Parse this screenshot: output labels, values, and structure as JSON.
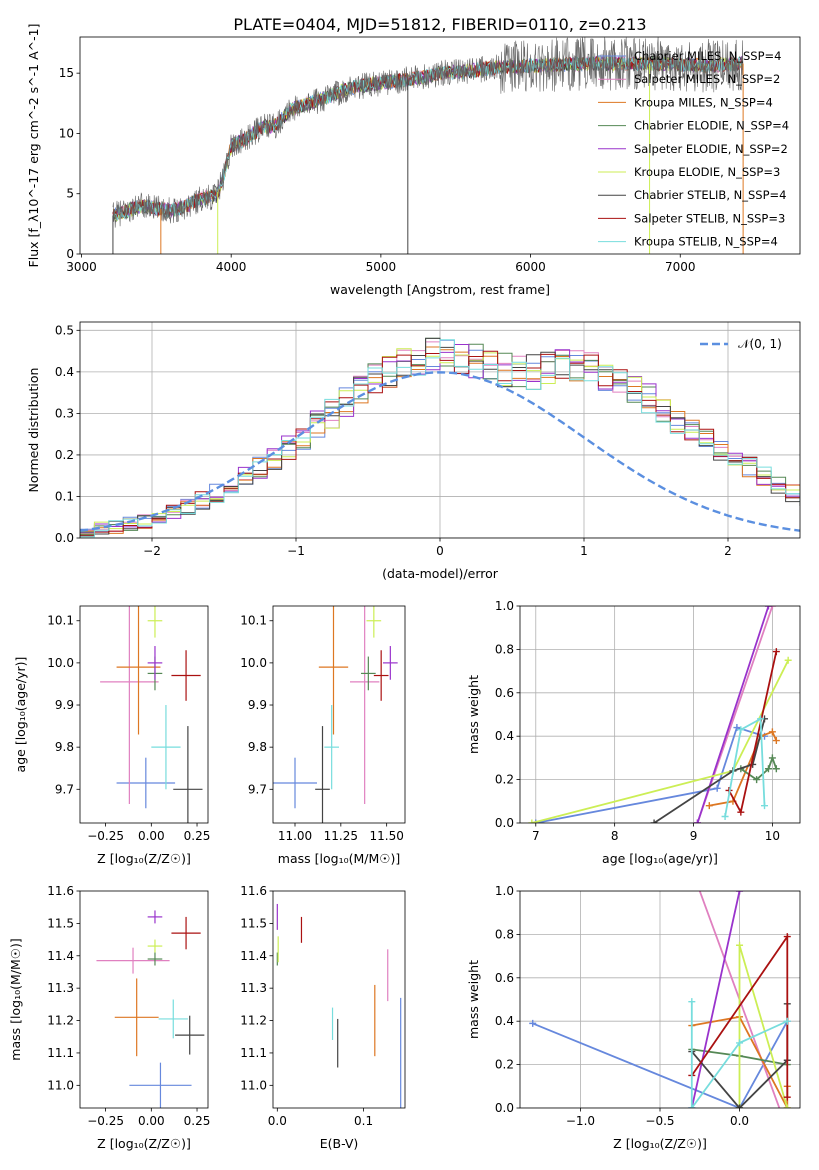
{
  "title": "PLATE=0404, MJD=51812, FIBERID=0110, z=0.213",
  "colors": {
    "Chabrier MILES": "#6688dd",
    "Salpeter MILES": "#e080c0",
    "Kroupa MILES": "#dd7722",
    "Chabrier ELODIE": "#558855",
    "Salpeter ELODIE": "#9933cc",
    "Kroupa ELODIE": "#ccee55",
    "Chabrier STELIB": "#444444",
    "Salpeter STELIB": "#aa1111",
    "Kroupa STELIB": "#77dddd",
    "data": "#666666",
    "normal": "#5b8fe0"
  },
  "chart_data": [
    {
      "type": "line",
      "id": "spectrum",
      "xlabel": "wavelength [Angstrom, rest frame]",
      "ylabel": "Flux [f_λ10^-17 erg cm^-2 s^-1 A^-1]",
      "xticks": [
        "3000",
        "4000",
        "5000",
        "6000",
        "7000"
      ],
      "yticks": [
        "0",
        "5",
        "10",
        "15"
      ],
      "xlim": [
        2990,
        7800
      ],
      "ylim": [
        0,
        18
      ],
      "x_range": [
        3210,
        7420
      ],
      "continuum": {
        "x": [
          3210,
          3400,
          3600,
          3700,
          3800,
          3900,
          3950,
          4000,
          4100,
          4200,
          4300,
          4400,
          4600,
          4800,
          5000,
          5200,
          5400,
          5600,
          5800,
          6000,
          6200,
          6400,
          6600,
          6800,
          7000,
          7200,
          7420
        ],
        "y": [
          3.2,
          4,
          3.6,
          4,
          4.6,
          4.8,
          6.5,
          9,
          9.5,
          10.5,
          10.7,
          12,
          12.8,
          13.8,
          14.2,
          14.5,
          15,
          15.2,
          15.5,
          15.6,
          15.7,
          15.8,
          15.8,
          15.8,
          15.7,
          15.6,
          15.8
        ]
      },
      "legend": [
        {
          "label": "Chabrier MILES, N_SSP=4"
        },
        {
          "label": "Salpeter MILES, N_SSP=2"
        },
        {
          "label": "Kroupa MILES, N_SSP=4"
        },
        {
          "label": "Chabrier ELODIE, N_SSP=4"
        },
        {
          "label": "Salpeter ELODIE, N_SSP=2"
        },
        {
          "label": "Kroupa ELODIE, N_SSP=3"
        },
        {
          "label": "Chabrier STELIB, N_SSP=4"
        },
        {
          "label": "Salpeter STELIB, N_SSP=3"
        },
        {
          "label": "Kroupa STELIB, N_SSP=4"
        }
      ],
      "legend_placement": "upper-right"
    },
    {
      "type": "histogram",
      "id": "residuals",
      "xlabel": "(data-model)/error",
      "ylabel": "Normed distribution",
      "xticks": [
        "−2",
        "−1",
        "0",
        "1",
        "2"
      ],
      "yticks": [
        "0.0",
        "0.1",
        "0.2",
        "0.3",
        "0.4",
        "0.5"
      ],
      "xlim": [
        -2.5,
        2.5
      ],
      "ylim": [
        0,
        0.52
      ],
      "bin_width": 0.1,
      "bin_start": -2.5,
      "base_values": [
        0.018,
        0.022,
        0.027,
        0.033,
        0.041,
        0.051,
        0.062,
        0.076,
        0.09,
        0.107,
        0.125,
        0.145,
        0.168,
        0.192,
        0.218,
        0.244,
        0.272,
        0.3,
        0.329,
        0.355,
        0.38,
        0.4,
        0.415,
        0.43,
        0.44,
        0.44,
        0.435,
        0.425,
        0.415,
        0.405,
        0.4,
        0.4,
        0.405,
        0.41,
        0.41,
        0.405,
        0.395,
        0.38,
        0.36,
        0.335,
        0.31,
        0.285,
        0.258,
        0.232,
        0.21,
        0.188,
        0.168,
        0.148,
        0.128,
        0.11,
        0.094,
        0.08,
        0.068,
        0.057,
        0.047,
        0.039,
        0.032,
        0.026,
        0.022,
        0.018
      ],
      "legend_label": "𝒩(0, 1)",
      "legend_placement": "upper-right",
      "grid": true
    },
    {
      "type": "scatter",
      "id": "age_vs_Z",
      "xlabel": "Z [log₁₀(Z/Z☉)]",
      "ylabel": "age  [log₁₀(age/yr)]",
      "xticks": [
        "−0.25",
        "0.00",
        "0.25"
      ],
      "yticks": [
        "9.7",
        "9.8",
        "9.9",
        "10.0",
        "10.1"
      ],
      "xlim": [
        -0.39,
        0.31
      ],
      "ylim": [
        9.62,
        10.135
      ],
      "points": [
        {
          "series": "Chabrier MILES",
          "x": -0.03,
          "y": 9.715,
          "xerr": 0.16,
          "yerr": 0.06
        },
        {
          "series": "Salpeter MILES",
          "x": -0.12,
          "y": 9.955,
          "xerr": 0.16,
          "yerr": 0.29
        },
        {
          "series": "Kroupa MILES",
          "x": -0.07,
          "y": 9.99,
          "xerr": 0.12,
          "yerr": 0.16
        },
        {
          "series": "Chabrier ELODIE",
          "x": 0.02,
          "y": 9.975,
          "xerr": 0.04,
          "yerr": 0.04
        },
        {
          "series": "Salpeter ELODIE",
          "x": 0.02,
          "y": 10.0,
          "xerr": 0.04,
          "yerr": 0.04
        },
        {
          "series": "Kroupa ELODIE",
          "x": 0.02,
          "y": 10.1,
          "xerr": 0.04,
          "yerr": 0.04
        },
        {
          "series": "Chabrier STELIB",
          "x": 0.2,
          "y": 9.7,
          "xerr": 0.08,
          "yerr": 0.15
        },
        {
          "series": "Salpeter STELIB",
          "x": 0.19,
          "y": 9.97,
          "xerr": 0.08,
          "yerr": 0.06
        },
        {
          "series": "Kroupa STELIB",
          "x": 0.08,
          "y": 9.8,
          "xerr": 0.08,
          "yerr": 0.1
        }
      ]
    },
    {
      "type": "scatter",
      "id": "age_vs_mass",
      "xlabel": "mass [log₁₀(M/M☉)]",
      "ylabel": "",
      "xticks": [
        "11.00",
        "11.25",
        "11.50"
      ],
      "yticks": [
        "9.7",
        "9.8",
        "9.9",
        "10.0",
        "10.1"
      ],
      "xlim": [
        10.88,
        11.6
      ],
      "ylim": [
        9.62,
        10.135
      ],
      "points": [
        {
          "series": "Chabrier MILES",
          "x": 11.0,
          "y": 9.715,
          "xerr": 0.12,
          "yerr": 0.06
        },
        {
          "series": "Salpeter MILES",
          "x": 11.38,
          "y": 9.955,
          "xerr": 0.08,
          "yerr": 0.29
        },
        {
          "series": "Kroupa MILES",
          "x": 11.21,
          "y": 9.99,
          "xerr": 0.08,
          "yerr": 0.16
        },
        {
          "series": "Chabrier ELODIE",
          "x": 11.4,
          "y": 9.975,
          "xerr": 0.04,
          "yerr": 0.04
        },
        {
          "series": "Salpeter ELODIE",
          "x": 11.52,
          "y": 10.0,
          "xerr": 0.04,
          "yerr": 0.04
        },
        {
          "series": "Kroupa ELODIE",
          "x": 11.43,
          "y": 10.1,
          "xerr": 0.04,
          "yerr": 0.04
        },
        {
          "series": "Chabrier STELIB",
          "x": 11.15,
          "y": 9.7,
          "xerr": 0.04,
          "yerr": 0.15
        },
        {
          "series": "Salpeter STELIB",
          "x": 11.47,
          "y": 9.97,
          "xerr": 0.04,
          "yerr": 0.06
        },
        {
          "series": "Kroupa STELIB",
          "x": 11.2,
          "y": 9.8,
          "xerr": 0.04,
          "yerr": 0.1
        }
      ]
    },
    {
      "type": "line",
      "id": "weight_vs_age",
      "xlabel": "age  [log₁₀(age/yr)]",
      "ylabel": "mass weight",
      "xticks": [
        "7",
        "8",
        "9",
        "10"
      ],
      "yticks": [
        "0.0",
        "0.2",
        "0.4",
        "0.6",
        "0.8",
        "1.0"
      ],
      "xlim": [
        6.8,
        10.35
      ],
      "ylim": [
        0,
        1
      ],
      "series": [
        {
          "name": "Chabrier MILES",
          "x": [
            7.0,
            9.3,
            9.55,
            9.9
          ],
          "y": [
            0.0,
            0.16,
            0.44,
            0.4
          ]
        },
        {
          "name": "Salpeter MILES",
          "x": [
            9.05,
            10.0
          ],
          "y": [
            0.0,
            1.0
          ]
        },
        {
          "name": "Kroupa MILES",
          "x": [
            9.2,
            9.5,
            9.85,
            10.0,
            10.05
          ],
          "y": [
            0.08,
            0.1,
            0.4,
            0.42,
            0.38
          ]
        },
        {
          "name": "Chabrier ELODIE",
          "x": [
            9.6,
            9.8,
            9.95,
            10.0,
            10.05
          ],
          "y": [
            0.25,
            0.2,
            0.25,
            0.3,
            0.25
          ]
        },
        {
          "name": "Salpeter ELODIE",
          "x": [
            9.05,
            9.95
          ],
          "y": [
            0.0,
            1.0
          ]
        },
        {
          "name": "Kroupa ELODIE",
          "x": [
            6.95,
            9.5,
            10.2
          ],
          "y": [
            0.0,
            0.24,
            0.75
          ]
        },
        {
          "name": "Chabrier STELIB",
          "x": [
            8.5,
            9.5,
            9.75,
            9.9
          ],
          "y": [
            0.0,
            0.24,
            0.27,
            0.48
          ]
        },
        {
          "name": "Salpeter STELIB",
          "x": [
            9.45,
            9.6,
            10.05
          ],
          "y": [
            0.15,
            0.05,
            0.79
          ]
        },
        {
          "name": "Kroupa STELIB",
          "x": [
            9.4,
            9.6,
            9.85,
            9.9
          ],
          "y": [
            0.03,
            0.43,
            0.48,
            0.08
          ]
        }
      ]
    },
    {
      "type": "scatter",
      "id": "mass_vs_Z",
      "xlabel": "Z [log₁₀(Z/Z☉)]",
      "ylabel": "mass [log₁₀(M/M☉)]",
      "xticks": [
        "−0.25",
        "0.00",
        "0.25"
      ],
      "yticks": [
        "11.0",
        "11.1",
        "11.2",
        "11.3",
        "11.4",
        "11.5",
        "11.6"
      ],
      "xlim": [
        -0.39,
        0.31
      ],
      "ylim": [
        10.93,
        11.6
      ],
      "points": [
        {
          "series": "Chabrier MILES",
          "x": 0.05,
          "y": 11.0,
          "xerr": 0.17,
          "yerr": 0.07
        },
        {
          "series": "Salpeter MILES",
          "x": -0.1,
          "y": 11.385,
          "xerr": 0.2,
          "yerr": 0.04
        },
        {
          "series": "Kroupa MILES",
          "x": -0.08,
          "y": 11.21,
          "xerr": 0.12,
          "yerr": 0.12
        },
        {
          "series": "Chabrier ELODIE",
          "x": 0.02,
          "y": 11.39,
          "xerr": 0.04,
          "yerr": 0.02
        },
        {
          "series": "Salpeter ELODIE",
          "x": 0.02,
          "y": 11.52,
          "xerr": 0.04,
          "yerr": 0.02
        },
        {
          "series": "Kroupa ELODIE",
          "x": 0.02,
          "y": 11.43,
          "xerr": 0.04,
          "yerr": 0.02
        },
        {
          "series": "Chabrier STELIB",
          "x": 0.21,
          "y": 11.155,
          "xerr": 0.08,
          "yerr": 0.06
        },
        {
          "series": "Salpeter STELIB",
          "x": 0.19,
          "y": 11.47,
          "xerr": 0.08,
          "yerr": 0.05
        },
        {
          "series": "Kroupa STELIB",
          "x": 0.12,
          "y": 11.205,
          "xerr": 0.08,
          "yerr": 0.06
        }
      ]
    },
    {
      "type": "scatter",
      "id": "mass_vs_ebv",
      "xlabel": "E(B-V)",
      "ylabel": "",
      "xticks": [
        "0.0",
        "0.1"
      ],
      "yticks": [
        "11.0",
        "11.1",
        "11.2",
        "11.3",
        "11.4",
        "11.5",
        "11.6"
      ],
      "xlim": [
        -0.005,
        0.148
      ],
      "ylim": [
        10.93,
        11.6
      ],
      "points": [
        {
          "series": "Chabrier MILES",
          "x": 0.143,
          "y": 11.1,
          "yerr": 0.17
        },
        {
          "series": "Salpeter MILES",
          "x": 0.128,
          "y": 11.34,
          "yerr": 0.08
        },
        {
          "series": "Kroupa MILES",
          "x": 0.113,
          "y": 11.2,
          "yerr": 0.11
        },
        {
          "series": "Chabrier ELODIE",
          "x": 0.0,
          "y": 11.39,
          "yerr": 0.02
        },
        {
          "series": "Salpeter ELODIE",
          "x": 0.0,
          "y": 11.52,
          "yerr": 0.04
        },
        {
          "series": "Kroupa ELODIE",
          "x": 0.001,
          "y": 11.42,
          "yerr": 0.04
        },
        {
          "series": "Chabrier STELIB",
          "x": 0.07,
          "y": 11.13,
          "yerr": 0.075
        },
        {
          "series": "Salpeter STELIB",
          "x": 0.028,
          "y": 11.48,
          "yerr": 0.04
        },
        {
          "series": "Kroupa STELIB",
          "x": 0.064,
          "y": 11.19,
          "yerr": 0.05
        }
      ]
    },
    {
      "type": "line",
      "id": "weight_vs_Z",
      "xlabel": "Z [log₁₀(Z/Z☉)]",
      "ylabel": "mass weight",
      "xticks": [
        "−1.0",
        "−0.5",
        "0.0"
      ],
      "yticks": [
        "0.0",
        "0.2",
        "0.4",
        "0.6",
        "0.8",
        "1.0"
      ],
      "xlim": [
        -1.38,
        0.38
      ],
      "ylim": [
        0,
        1
      ],
      "series": [
        {
          "name": "Chabrier MILES",
          "x": [
            -1.3,
            0.0,
            0.3
          ],
          "y": [
            0.39,
            0.0,
            0.4
          ]
        },
        {
          "name": "Salpeter MILES",
          "x": [
            -0.3,
            0.3
          ],
          "y": [
            1.1,
            -0.1
          ]
        },
        {
          "name": "Kroupa MILES",
          "x": [
            -0.3,
            0.0,
            0.3,
            0.3
          ],
          "y": [
            0.38,
            0.42,
            0.0,
            0.1
          ]
        },
        {
          "name": "Chabrier ELODIE",
          "x": [
            -0.3,
            0.0,
            0.3
          ],
          "y": [
            0.27,
            0.24,
            0.2
          ]
        },
        {
          "name": "Salpeter ELODIE",
          "x": [
            -0.3,
            0.0
          ],
          "y": [
            0.0,
            1.0
          ]
        },
        {
          "name": "Kroupa ELODIE",
          "x": [
            0.0,
            0.0,
            0.3
          ],
          "y": [
            0.0,
            0.75,
            0.0
          ]
        },
        {
          "name": "Chabrier STELIB",
          "x": [
            -0.3,
            0.0,
            0.3,
            0.3
          ],
          "y": [
            0.26,
            0.0,
            0.22,
            0.48
          ]
        },
        {
          "name": "Salpeter STELIB",
          "x": [
            -0.3,
            0.3,
            0.3
          ],
          "y": [
            0.15,
            0.79,
            0.05
          ]
        },
        {
          "name": "Kroupa STELIB",
          "x": [
            -0.3,
            -0.3,
            0.0,
            0.3
          ],
          "y": [
            0.49,
            0.0,
            0.3,
            0.4
          ]
        }
      ]
    }
  ]
}
